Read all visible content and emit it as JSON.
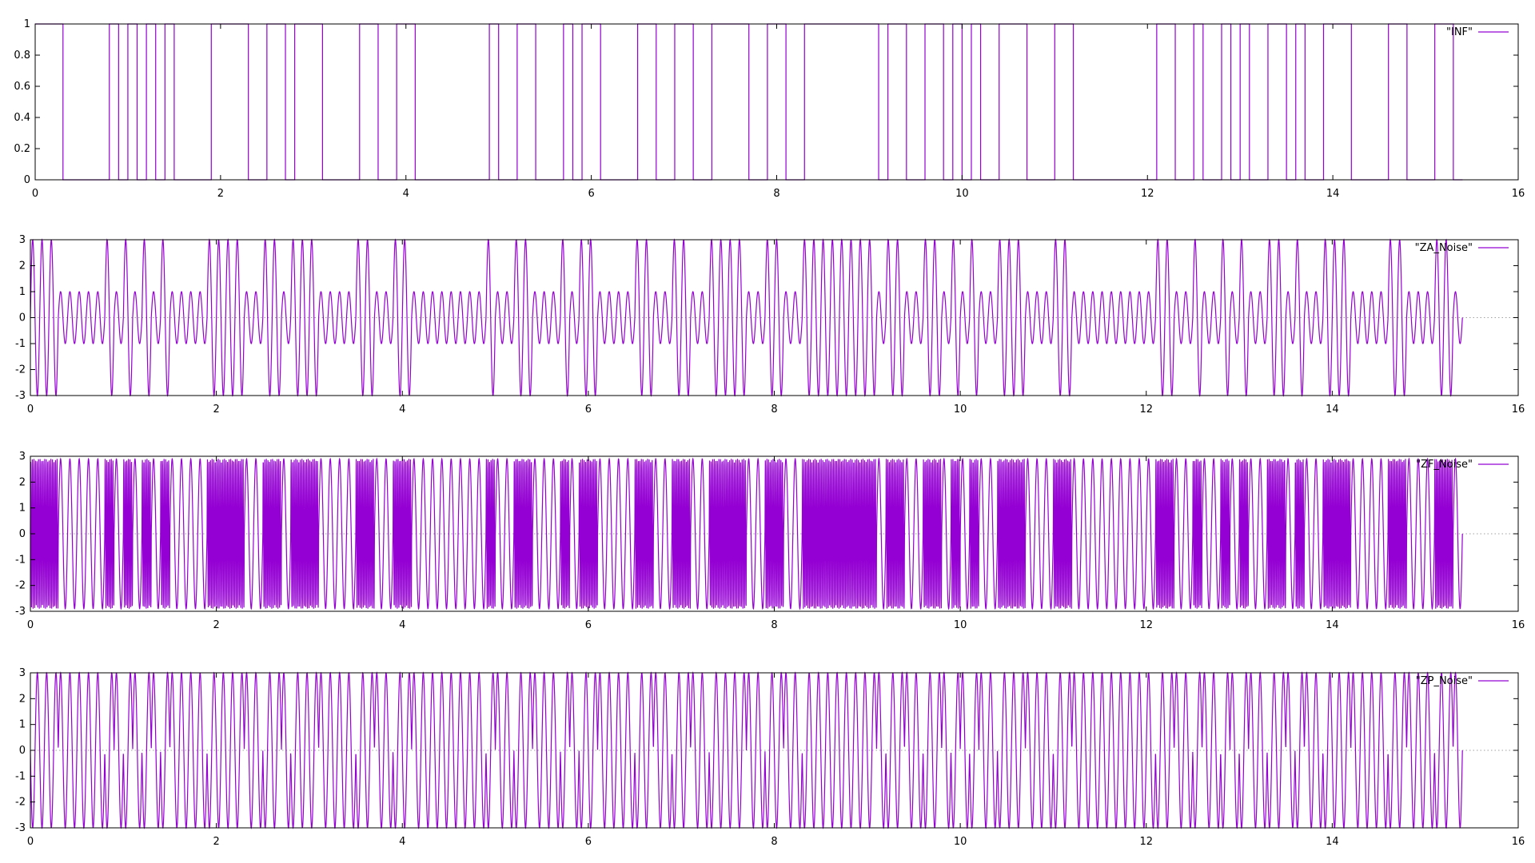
{
  "chart_data": [
    {
      "type": "line",
      "legend": "\"INF\"",
      "legend_position": "top-right",
      "xlim": [
        0,
        16
      ],
      "ylim": [
        0,
        1
      ],
      "x_ticks": [
        "0",
        "2",
        "4",
        "6",
        "8",
        "10",
        "12",
        "14",
        "16"
      ],
      "y_ticks": [
        "0",
        "0.2",
        "0.4",
        "0.6",
        "0.8",
        "1"
      ],
      "grid": false,
      "signal": "square",
      "x_end": 15.4,
      "bit_width": 0.1,
      "transitions": [
        0.3,
        0.8,
        0.9,
        1.0,
        1.1,
        1.2,
        1.3,
        1.4,
        1.5,
        1.9,
        2.3,
        2.5,
        2.7,
        2.8,
        3.1,
        3.5,
        3.7,
        3.9,
        4.1,
        4.9,
        5.0,
        5.2,
        5.4,
        5.7,
        5.8,
        5.9,
        6.1,
        6.5,
        6.7,
        6.9,
        7.1,
        7.3,
        7.7,
        7.9,
        8.1,
        8.3,
        9.1,
        9.2,
        9.4,
        9.6,
        9.8,
        9.9,
        10.0,
        10.1,
        10.2,
        10.4,
        10.7,
        11.0,
        11.2,
        12.1,
        12.3,
        12.5,
        12.6,
        12.8,
        12.9,
        13.0,
        13.1,
        13.3,
        13.5,
        13.6,
        13.7,
        13.9,
        14.2,
        14.6,
        14.8,
        15.1,
        15.3
      ]
    },
    {
      "type": "line",
      "legend": "\"ZA_Noise\"",
      "legend_position": "top-right",
      "xlim": [
        0,
        16
      ],
      "ylim": [
        -3,
        3
      ],
      "x_ticks": [
        "0",
        "2",
        "4",
        "6",
        "8",
        "10",
        "12",
        "14",
        "16"
      ],
      "y_ticks": [
        "-3",
        "-2",
        "-1",
        "0",
        "1",
        "2",
        "3"
      ],
      "grid": false,
      "zero_line": true,
      "signal": "amplitude-modulated sine",
      "x_end": 15.4,
      "cycles_per_unit": 10,
      "amplitude_levels": [
        3,
        1
      ]
    },
    {
      "type": "line",
      "legend": "\"ZF_Noise\"",
      "legend_position": "top-right",
      "xlim": [
        0,
        16
      ],
      "ylim": [
        -3,
        3
      ],
      "x_ticks": [
        "0",
        "2",
        "4",
        "6",
        "8",
        "10",
        "12",
        "14",
        "16"
      ],
      "y_ticks": [
        "-3",
        "-2",
        "-1",
        "0",
        "1",
        "2",
        "3"
      ],
      "grid": false,
      "zero_line": true,
      "signal": "frequency-modulated sine",
      "x_end": 15.4,
      "amplitude": 2.9,
      "cycles_per_unit": [
        10,
        60
      ]
    },
    {
      "type": "line",
      "legend": "\"ZP_Noise\"",
      "legend_position": "top-right",
      "xlim": [
        0,
        16
      ],
      "ylim": [
        -3,
        3
      ],
      "x_ticks": [
        "0",
        "2",
        "4",
        "6",
        "8",
        "10",
        "12",
        "14",
        "16"
      ],
      "y_ticks": [
        "-3",
        "-2",
        "-1",
        "0",
        "1",
        "2",
        "3"
      ],
      "grid": false,
      "zero_line": true,
      "signal": "phase-modulated sine",
      "x_end": 15.4,
      "amplitude": 3,
      "cycles_per_unit": 10
    }
  ],
  "colors": {
    "series": "#9400d3",
    "axis": "#000000",
    "zero_line": "#a0a0a0"
  }
}
